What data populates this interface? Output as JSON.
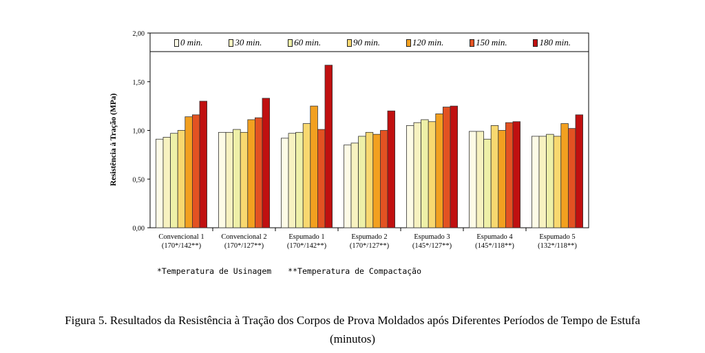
{
  "chart_data": {
    "type": "bar",
    "ylabel": "Resistência à Tração (MPa)",
    "ylim": [
      0,
      2.0
    ],
    "yticks": [
      "0,00",
      "0,50",
      "1,00",
      "1,50",
      "2,00"
    ],
    "grid": false,
    "legend_position": "top",
    "categories": [
      {
        "name": "Convencional 1",
        "sub": "(170*/142**)"
      },
      {
        "name": "Convencional 2",
        "sub": "(170*/127**)"
      },
      {
        "name": "Espumado 1",
        "sub": "(170*/142**)"
      },
      {
        "name": "Espumado 2",
        "sub": "(170*/127**)"
      },
      {
        "name": "Espumado 3",
        "sub": "(145*/127**)"
      },
      {
        "name": "Espumado 4",
        "sub": "(145*/118**)"
      },
      {
        "name": "Espumado 5",
        "sub": "(132*/118**)"
      }
    ],
    "series": [
      {
        "name": "0 min.",
        "color": "#fdfbe6",
        "values": [
          0.91,
          0.98,
          0.92,
          0.85,
          1.05,
          0.99,
          0.94
        ]
      },
      {
        "name": "30 min.",
        "color": "#f7f2c0",
        "values": [
          0.93,
          0.98,
          0.97,
          0.87,
          1.08,
          0.99,
          0.94
        ]
      },
      {
        "name": "60 min.",
        "color": "#eef0a8",
        "values": [
          0.97,
          1.01,
          0.98,
          0.94,
          1.11,
          0.91,
          0.96
        ]
      },
      {
        "name": "90 min.",
        "color": "#f8d870",
        "values": [
          1.0,
          0.98,
          1.07,
          0.98,
          1.09,
          1.05,
          0.94
        ]
      },
      {
        "name": "120 min.",
        "color": "#f2a020",
        "values": [
          1.14,
          1.11,
          1.25,
          0.96,
          1.17,
          1.0,
          1.07
        ]
      },
      {
        "name": "150 min.",
        "color": "#e35222",
        "values": [
          1.16,
          1.13,
          1.01,
          1.0,
          1.24,
          1.08,
          1.02
        ]
      },
      {
        "name": "180 min.",
        "color": "#c01010",
        "values": [
          1.3,
          1.33,
          1.67,
          1.2,
          1.25,
          1.09,
          1.16
        ]
      }
    ]
  },
  "footnotes": {
    "usinagem": "*Temperatura de Usinagem",
    "compactacao": "**Temperatura de Compactação"
  },
  "caption": {
    "line1": "Figura 5. Resultados da Resistência à Tração dos Corpos de Prova Moldados após Diferentes Períodos de Tempo de Estufa",
    "line2": "(minutos)"
  }
}
